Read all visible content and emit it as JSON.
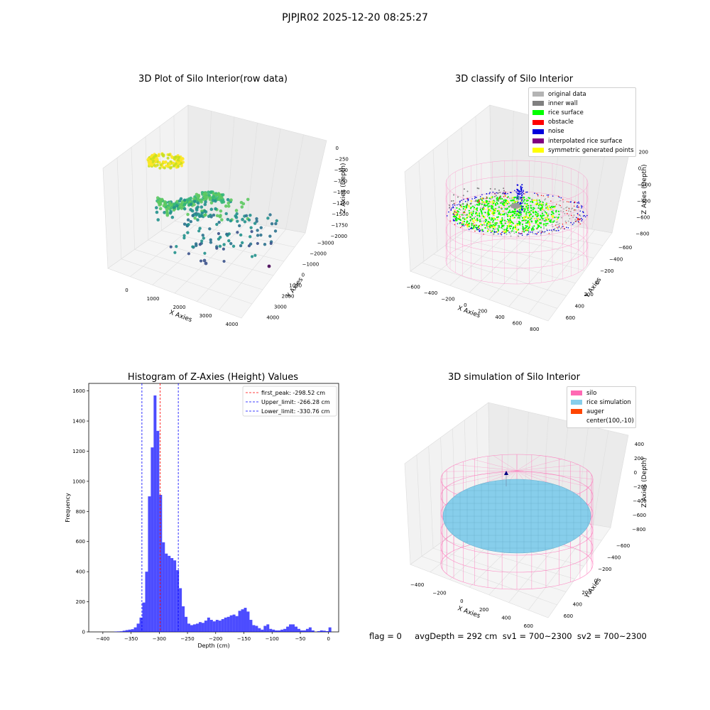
{
  "figure": {
    "suptitle": "PJPJR02 2025-12-20 08:25:27",
    "status_line": "flag = 0     avgDepth = 292 cm  sv1 = 700~2300  sv2 = 700~2300"
  },
  "panels": {
    "p1": {
      "title": "3D Plot of Silo Interior(row data)",
      "xlabel": "X Axies",
      "ylabel": "Y Axies",
      "zlabel": "Z Axies (Depth)",
      "xticks": [
        "0",
        "1000",
        "2000",
        "3000",
        "4000"
      ],
      "yticks": [
        "4000",
        "3000",
        "2000",
        "1000",
        "0",
        "−1000",
        "−2000",
        "−3000"
      ],
      "zticks": [
        "0",
        "−250",
        "−500",
        "−750",
        "−1000",
        "−1250",
        "−1500",
        "−1750",
        "−2000"
      ],
      "colormap": [
        "#440154",
        "#3b528b",
        "#21918c",
        "#5ec962",
        "#fde725"
      ]
    },
    "p2": {
      "title": "3D classify of Silo Interior",
      "xlabel": "X Axies",
      "ylabel": "Y Axies",
      "zlabel": "Z Axies (Depth)",
      "xticks": [
        "−600",
        "−400",
        "−200",
        "0",
        "200",
        "400",
        "600",
        "800"
      ],
      "yticks": [
        "600",
        "400",
        "200",
        "0",
        "−200",
        "−400",
        "−600"
      ],
      "zticks": [
        "200",
        "0",
        "−200",
        "−400",
        "−600",
        "−800"
      ],
      "legend": [
        {
          "label": "original data",
          "color": "#b4b4b4"
        },
        {
          "label": "inner wall",
          "color": "#808080"
        },
        {
          "label": "rice surface",
          "color": "#00ff00"
        },
        {
          "label": "obstacle",
          "color": "#ff0000"
        },
        {
          "label": "noise",
          "color": "#0000dd"
        },
        {
          "label": "interpolated rice surface",
          "color": "#800080"
        },
        {
          "label": "symmetric generated points",
          "color": "#ffff00"
        }
      ],
      "silo_color": "#ff80c0"
    },
    "p3": {
      "title": "Histogram of Z-Axies (Height) Values",
      "legend": [
        {
          "label": "first_peak: -298.52 cm",
          "color": "#ff0000"
        },
        {
          "label": "Upper_limit: -266.28 cm",
          "color": "#0000ff"
        },
        {
          "label": "Lower_limit: -330.76 cm",
          "color": "#0000ff"
        }
      ]
    },
    "p4": {
      "title": "3D simulation of Silo Interior",
      "xlabel": "X Axies",
      "ylabel": "Y Axies",
      "zlabel": "Z Axies (Depth)",
      "xticks": [
        "−400",
        "−200",
        "0",
        "200",
        "400",
        "600"
      ],
      "yticks": [
        "600",
        "400",
        "200",
        "0",
        "−200",
        "−400",
        "−600"
      ],
      "zticks": [
        "400",
        "200",
        "0",
        "−200",
        "−400",
        "−600",
        "−800"
      ],
      "legend": [
        {
          "label": "silo",
          "color": "#ff69b4"
        },
        {
          "label": "rice simulation",
          "color": "#87ceeb"
        },
        {
          "label": "auger",
          "color": "#ff4500"
        },
        {
          "label": "center(100,-10)",
          "color": ""
        }
      ]
    }
  },
  "chart_data": [
    {
      "type": "scatter",
      "subtype": "3d",
      "title": "3D Plot of Silo Interior(row data)",
      "xlabel": "X Axies",
      "ylabel": "Y Axies",
      "zlabel": "Z Axies (Depth)",
      "xlim": [
        -500,
        4500
      ],
      "ylim": [
        -3500,
        4500
      ],
      "zlim": [
        -2100,
        100
      ],
      "color_by": "z"
    },
    {
      "type": "scatter",
      "subtype": "3d",
      "title": "3D classify of Silo Interior",
      "xlabel": "X Axies",
      "ylabel": "Y Axies",
      "zlabel": "Z Axies (Depth)",
      "xlim": [
        -650,
        850
      ],
      "ylim": [
        -700,
        700
      ],
      "zlim": [
        -900,
        350
      ],
      "series": [
        {
          "name": "original data"
        },
        {
          "name": "inner wall"
        },
        {
          "name": "rice surface"
        },
        {
          "name": "obstacle"
        },
        {
          "name": "noise"
        },
        {
          "name": "interpolated rice surface"
        },
        {
          "name": "symmetric generated points"
        }
      ],
      "legend_position": "top-right"
    },
    {
      "type": "bar",
      "subtype": "histogram",
      "title": "Histogram of Z-Axies (Height) Values",
      "xlabel": "Depth (cm)",
      "ylabel": "Frequency",
      "xlim": [
        -425,
        18
      ],
      "ylim": [
        0,
        1650
      ],
      "xticks": [
        -400,
        -350,
        -300,
        -250,
        -200,
        -150,
        -100,
        -50,
        0
      ],
      "yticks": [
        0,
        200,
        400,
        600,
        800,
        1000,
        1200,
        1400,
        1600
      ],
      "bin_width": 5,
      "bins": [
        [
          -385,
          0
        ],
        [
          -380,
          2
        ],
        [
          -375,
          3
        ],
        [
          -370,
          4
        ],
        [
          -365,
          8
        ],
        [
          -360,
          12
        ],
        [
          -355,
          15
        ],
        [
          -350,
          18
        ],
        [
          -345,
          30
        ],
        [
          -340,
          55
        ],
        [
          -335,
          95
        ],
        [
          -330,
          195
        ],
        [
          -325,
          400
        ],
        [
          -320,
          900
        ],
        [
          -315,
          1225
        ],
        [
          -310,
          1570
        ],
        [
          -305,
          1335
        ],
        [
          -300,
          910
        ],
        [
          -295,
          595
        ],
        [
          -290,
          520
        ],
        [
          -285,
          505
        ],
        [
          -280,
          490
        ],
        [
          -275,
          475
        ],
        [
          -270,
          410
        ],
        [
          -265,
          290
        ],
        [
          -260,
          170
        ],
        [
          -255,
          100
        ],
        [
          -250,
          55
        ],
        [
          -245,
          45
        ],
        [
          -240,
          50
        ],
        [
          -235,
          55
        ],
        [
          -230,
          65
        ],
        [
          -225,
          60
        ],
        [
          -220,
          75
        ],
        [
          -215,
          95
        ],
        [
          -210,
          80
        ],
        [
          -205,
          70
        ],
        [
          -200,
          80
        ],
        [
          -195,
          75
        ],
        [
          -190,
          85
        ],
        [
          -185,
          95
        ],
        [
          -180,
          100
        ],
        [
          -175,
          110
        ],
        [
          -170,
          115
        ],
        [
          -165,
          105
        ],
        [
          -160,
          140
        ],
        [
          -155,
          150
        ],
        [
          -150,
          160
        ],
        [
          -145,
          135
        ],
        [
          -140,
          80
        ],
        [
          -135,
          45
        ],
        [
          -130,
          40
        ],
        [
          -125,
          25
        ],
        [
          -120,
          15
        ],
        [
          -115,
          40
        ],
        [
          -110,
          50
        ],
        [
          -105,
          20
        ],
        [
          -100,
          15
        ],
        [
          -95,
          10
        ],
        [
          -90,
          10
        ],
        [
          -85,
          15
        ],
        [
          -80,
          20
        ],
        [
          -75,
          35
        ],
        [
          -70,
          50
        ],
        [
          -65,
          50
        ],
        [
          -60,
          35
        ],
        [
          -55,
          20
        ],
        [
          -50,
          10
        ],
        [
          -45,
          10
        ],
        [
          -40,
          20
        ],
        [
          -35,
          30
        ],
        [
          -30,
          10
        ],
        [
          -25,
          0
        ],
        [
          -20,
          5
        ],
        [
          -15,
          10
        ],
        [
          -10,
          8
        ],
        [
          -5,
          5
        ],
        [
          0,
          30
        ]
      ],
      "color": "#0000ff",
      "vlines": [
        {
          "x": -298.52,
          "label": "first_peak: -298.52 cm",
          "color": "#ff0000"
        },
        {
          "x": -266.28,
          "label": "Upper_limit: -266.28 cm",
          "color": "#0000ff"
        },
        {
          "x": -330.76,
          "label": "Lower_limit: -330.76 cm",
          "color": "#0000ff"
        }
      ],
      "legend_position": "top-right"
    },
    {
      "type": "scatter",
      "subtype": "3d-surface",
      "title": "3D simulation of Silo Interior",
      "xlabel": "X Axies",
      "ylabel": "Y Axies",
      "zlabel": "Z Axies (Depth)",
      "xlim": [
        -550,
        750
      ],
      "ylim": [
        -700,
        700
      ],
      "zlim": [
        -900,
        500
      ],
      "series": [
        {
          "name": "silo"
        },
        {
          "name": "rice simulation"
        },
        {
          "name": "auger"
        },
        {
          "name": "center(100,-10)"
        }
      ],
      "legend_position": "top-right"
    }
  ]
}
